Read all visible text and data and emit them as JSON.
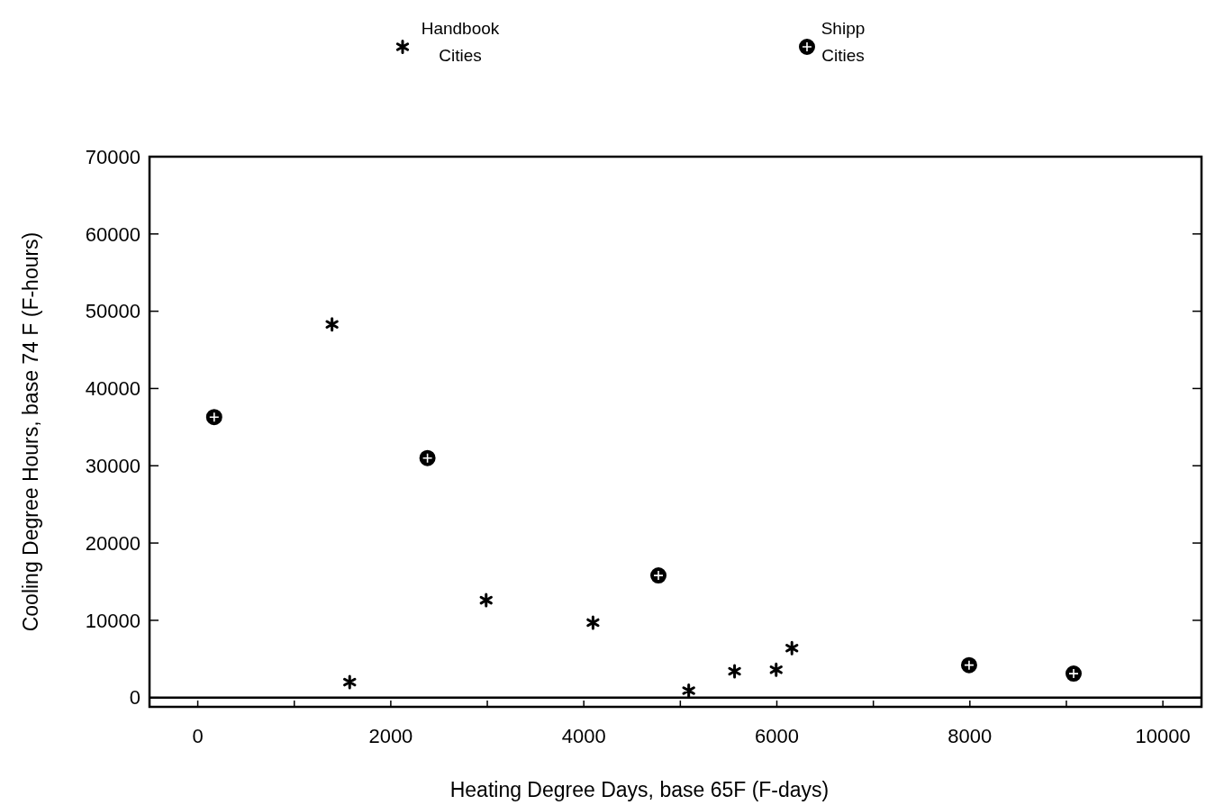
{
  "chart_data": {
    "type": "scatter",
    "xlabel": "Heating Degree Days, base 65F (F-days)",
    "ylabel": "Cooling Degree Hours, base 74 F (F-hours)",
    "series": [
      {
        "name": "Handbook Cities",
        "color": "#000000",
        "marker": "cross",
        "x": [
          1391,
          1574,
          2988,
          4095,
          5087,
          5562,
          5993,
          6156
        ],
        "values": [
          48300,
          2000,
          12600,
          9700,
          900,
          3400,
          3600,
          6400
        ]
      },
      {
        "name": "Shipp Cities",
        "color": "#000000",
        "marker": "circle",
        "x": [
          170,
          2380,
          4773,
          7992,
          9075
        ],
        "values": [
          36300,
          31000,
          15800,
          4200,
          3100
        ]
      }
    ],
    "xlim": [
      -500,
      10400
    ],
    "xticks": [
      0,
      {
        "value": 1000,
        "label": null
      },
      2000,
      {
        "value": 3000,
        "label": null
      },
      4000,
      {
        "value": 5000,
        "label": null
      },
      6000,
      {
        "value": 7000,
        "label": null
      },
      8000,
      {
        "value": 9000,
        "label": null
      },
      10000
    ],
    "ylim": [
      -1200,
      70000
    ],
    "yticks": [
      0,
      10000,
      20000,
      30000,
      40000,
      50000,
      60000,
      70000
    ],
    "ref_lines": [
      {
        "axis": "y",
        "value": 0
      }
    ],
    "legend": "top",
    "grid": false
  }
}
